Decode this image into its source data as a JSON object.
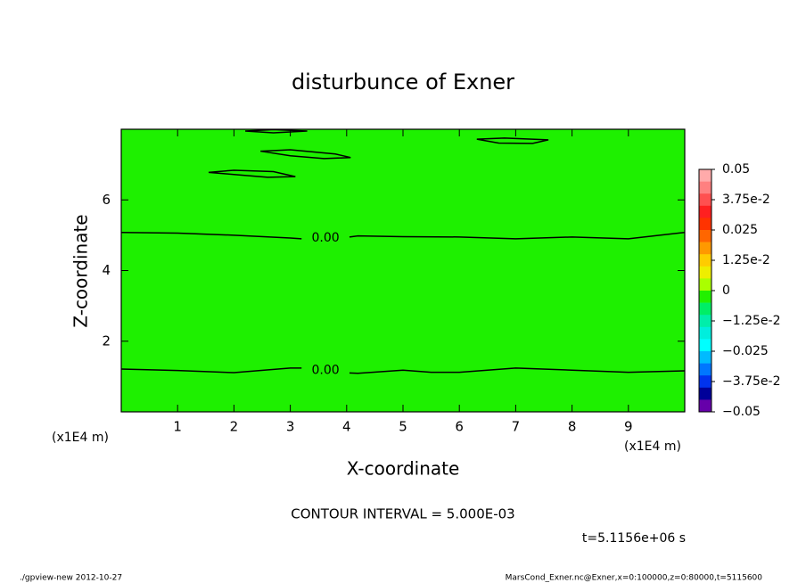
{
  "chart_data": {
    "type": "contour",
    "title": "disturbunce of Exner",
    "xlabel": "X-coordinate",
    "ylabel": "Z-coordinate",
    "x_unit": "(x1E4 m)",
    "note": "CONTOUR INTERVAL = 5.000E-03",
    "time": "t=5.1156e+06 s",
    "footer_left": "./gpview-new  2012-10-27",
    "footer_right": "MarsCond_Exner.nc@Exner,x=0:100000,z=0:80000,t=5115600",
    "xlim": [
      0,
      10
    ],
    "xticks": [
      1,
      2,
      3,
      4,
      5,
      6,
      7,
      8,
      9
    ],
    "ylim": [
      0,
      8
    ],
    "yticks": [
      2,
      4,
      6
    ],
    "field_color": "#1ef000",
    "line_color": "#000000",
    "contours": [
      {
        "label": "0.00",
        "x": [
          0,
          1,
          2,
          3,
          3.2,
          null,
          4.05,
          4.2,
          5,
          6,
          7,
          8,
          9,
          10
        ],
        "y": [
          5.08,
          5.06,
          5.0,
          4.92,
          4.9,
          null,
          4.95,
          4.98,
          4.96,
          4.95,
          4.9,
          4.95,
          4.9,
          5.08
        ]
      },
      {
        "label": "0.00",
        "x": [
          0,
          1,
          2,
          3,
          3.2,
          null,
          4.05,
          4.2,
          5,
          5.5,
          6,
          7,
          8,
          9,
          10
        ],
        "y": [
          1.21,
          1.17,
          1.11,
          1.24,
          1.24,
          null,
          1.1,
          1.09,
          1.18,
          1.12,
          1.12,
          1.24,
          1.18,
          1.12,
          1.16
        ]
      },
      {
        "x": [
          2.2,
          2.7,
          3.3,
          2.7,
          2.2
        ],
        "y": [
          7.95,
          7.99,
          7.95,
          7.9,
          7.95
        ]
      },
      {
        "x": [
          2.47,
          3.0,
          3.8,
          4.07,
          3.6,
          3.0,
          2.47
        ],
        "y": [
          7.38,
          7.42,
          7.3,
          7.2,
          7.17,
          7.25,
          7.38
        ]
      },
      {
        "x": [
          1.55,
          2.0,
          2.7,
          3.09,
          2.6,
          2.0,
          1.55
        ],
        "y": [
          6.78,
          6.84,
          6.8,
          6.66,
          6.64,
          6.72,
          6.78
        ]
      },
      {
        "x": [
          6.31,
          6.8,
          7.58,
          7.3,
          6.7,
          6.31
        ],
        "y": [
          7.72,
          7.75,
          7.7,
          7.6,
          7.61,
          7.72
        ]
      }
    ],
    "colorbar_colors": [
      "#ffaaaa",
      "#ff8080",
      "#ff5050",
      "#ff2020",
      "#ff3300",
      "#ff6600",
      "#ff9900",
      "#ffcc00",
      "#eeee00",
      "#aaff00",
      "#22f000",
      "#00ee66",
      "#00eeaa",
      "#00eedd",
      "#00ffff",
      "#00bbff",
      "#0077ff",
      "#0033ee",
      "#000099",
      "#6600aa"
    ],
    "clim": [
      -0.05,
      0.05
    ],
    "cticks": [
      {
        "value": 0.05,
        "label": "0.05"
      },
      {
        "value": 0.0375,
        "label": "3.75e-2"
      },
      {
        "value": 0.025,
        "label": "0.025"
      },
      {
        "value": 0.0125,
        "label": "1.25e-2"
      },
      0,
      {
        "value": -0.0125,
        "label": "−1.25e-2"
      },
      {
        "value": -0.025,
        "label": "−0.025"
      },
      {
        "value": -0.0375,
        "label": "−3.75e-2"
      },
      {
        "value": -0.05,
        "label": "−0.05"
      }
    ]
  }
}
